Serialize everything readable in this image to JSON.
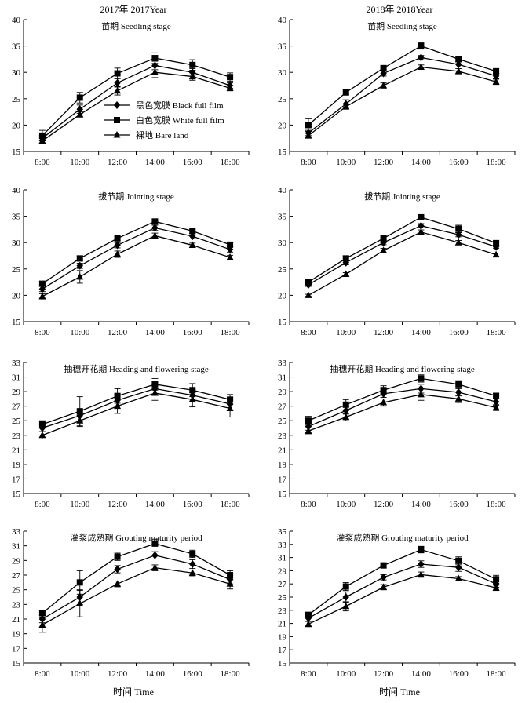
{
  "column_headers": [
    "2017年 2017Year",
    "2018年 2018Year"
  ],
  "legend": [
    {
      "label": "黑色宽膜 Black full film",
      "marker": "diamond"
    },
    {
      "label": "白色宽膜 White full film",
      "marker": "square"
    },
    {
      "label": "裸地 Bare land",
      "marker": "triangle"
    }
  ],
  "xlabel": "时间 Time",
  "chart_data": [
    {
      "type": "line",
      "title": "苗期 Seedling stage",
      "year": "2017",
      "categories": [
        "8:00",
        "10:00",
        "12:00",
        "14:00",
        "16:00",
        "18:00"
      ],
      "ylim": [
        15,
        40
      ],
      "yticks": [
        15,
        20,
        25,
        30,
        35,
        40
      ],
      "series": [
        {
          "name": "黑色宽膜 Black full film",
          "marker": "diamond",
          "values": [
            17.5,
            23.0,
            28.0,
            31.3,
            30.0,
            27.5
          ],
          "err": [
            0.5,
            0.8,
            0.8,
            0.8,
            0.7,
            0.5
          ]
        },
        {
          "name": "白色宽膜 White full film",
          "marker": "square",
          "values": [
            18.0,
            25.2,
            29.8,
            32.7,
            31.4,
            29.1
          ],
          "err": [
            1.0,
            1.0,
            1.0,
            1.0,
            1.0,
            0.8
          ]
        },
        {
          "name": "裸地 Bare land",
          "marker": "triangle",
          "values": [
            17.0,
            22.0,
            26.5,
            30.0,
            29.2,
            27.0
          ],
          "err": [
            0.5,
            0.5,
            0.8,
            1.0,
            0.7,
            0.5
          ]
        }
      ]
    },
    {
      "type": "line",
      "title": "苗期 Seedling stage",
      "year": "2018",
      "categories": [
        "8:00",
        "10:00",
        "12:00",
        "14:00",
        "16:00",
        "18:00"
      ],
      "ylim": [
        15,
        40
      ],
      "yticks": [
        15,
        20,
        25,
        30,
        35,
        40
      ],
      "series": [
        {
          "name": "黑色宽膜 Black full film",
          "marker": "diamond",
          "values": [
            18.5,
            24.0,
            29.8,
            32.8,
            31.5,
            29.3
          ],
          "err": [
            0.5,
            0.8,
            0.5,
            0.4,
            0.5,
            0.5
          ]
        },
        {
          "name": "白色宽膜 White full film",
          "marker": "square",
          "values": [
            20.0,
            26.2,
            30.8,
            35.0,
            32.5,
            30.2
          ],
          "err": [
            1.2,
            0.5,
            0.3,
            0.6,
            0.5,
            0.5
          ]
        },
        {
          "name": "裸地 Bare land",
          "marker": "triangle",
          "values": [
            18.0,
            23.5,
            27.5,
            31.0,
            30.2,
            28.2
          ],
          "err": [
            0.5,
            0.5,
            0.5,
            0.4,
            0.5,
            0.5
          ]
        }
      ]
    },
    {
      "type": "line",
      "title": "拔节期 Jointing stage",
      "year": "2017",
      "categories": [
        "8:00",
        "10:00",
        "12:00",
        "14:00",
        "16:00",
        "18:00"
      ],
      "ylim": [
        15,
        40
      ],
      "yticks": [
        15,
        20,
        25,
        30,
        35,
        40
      ],
      "series": [
        {
          "name": "黑色宽膜 Black full film",
          "marker": "diamond",
          "values": [
            21.2,
            25.6,
            29.5,
            32.8,
            31.2,
            28.7
          ],
          "err": [
            0.5,
            0.5,
            0.5,
            0.5,
            0.5,
            0.5
          ]
        },
        {
          "name": "白色宽膜 White full film",
          "marker": "square",
          "values": [
            22.2,
            27.0,
            30.8,
            34.0,
            32.2,
            29.6
          ],
          "err": [
            0.3,
            0.5,
            0.4,
            0.5,
            0.5,
            0.4
          ]
        },
        {
          "name": "裸地 Bare land",
          "marker": "triangle",
          "values": [
            19.8,
            23.5,
            27.8,
            31.3,
            29.5,
            27.2
          ],
          "err": [
            0.5,
            1.2,
            0.6,
            0.5,
            0.4,
            0.4
          ]
        }
      ]
    },
    {
      "type": "line",
      "title": "拔节期 Jointing stage",
      "year": "2018",
      "categories": [
        "8:00",
        "10:00",
        "12:00",
        "14:00",
        "16:00",
        "18:00"
      ],
      "ylim": [
        15,
        40
      ],
      "yticks": [
        15,
        20,
        25,
        30,
        35,
        40
      ],
      "series": [
        {
          "name": "黑色宽膜 Black full film",
          "marker": "diamond",
          "values": [
            22.0,
            26.2,
            30.0,
            33.2,
            31.5,
            29.2
          ],
          "err": [
            0.3,
            0.4,
            0.4,
            0.4,
            0.4,
            0.3
          ]
        },
        {
          "name": "白色宽膜 White full film",
          "marker": "square",
          "values": [
            22.5,
            27.0,
            30.8,
            34.8,
            32.6,
            29.9
          ],
          "err": [
            0.3,
            0.5,
            0.5,
            0.4,
            0.7,
            0.4
          ]
        },
        {
          "name": "裸地 Bare land",
          "marker": "triangle",
          "values": [
            20.0,
            24.0,
            28.5,
            32.0,
            30.0,
            27.7
          ],
          "err": [
            0.2,
            0.3,
            0.4,
            0.4,
            0.4,
            0.3
          ]
        }
      ]
    },
    {
      "type": "line",
      "title": "抽穗开花期 Heading and flowering stage",
      "year": "2017",
      "categories": [
        "8:00",
        "10:00",
        "12:00",
        "14:00",
        "16:00",
        "18:00"
      ],
      "ylim": [
        15,
        33
      ],
      "yticks": [
        15,
        17,
        19,
        21,
        23,
        25,
        27,
        29,
        31,
        33
      ],
      "series": [
        {
          "name": "黑色宽膜 Black full film",
          "marker": "diamond",
          "values": [
            24.0,
            25.7,
            27.8,
            29.4,
            28.5,
            27.3
          ],
          "err": [
            0.5,
            0.8,
            0.8,
            0.8,
            0.8,
            0.8
          ]
        },
        {
          "name": "白色宽膜 White full film",
          "marker": "square",
          "values": [
            24.5,
            26.3,
            28.4,
            30.0,
            29.2,
            27.9
          ],
          "err": [
            0.5,
            2.0,
            1.0,
            0.8,
            0.9,
            0.7
          ]
        },
        {
          "name": "裸地 Bare land",
          "marker": "triangle",
          "values": [
            23.0,
            25.0,
            27.0,
            28.8,
            27.9,
            26.7
          ],
          "err": [
            0.5,
            0.8,
            1.0,
            1.0,
            1.0,
            1.2
          ]
        }
      ]
    },
    {
      "type": "line",
      "title": "抽穗开花期 Heading and flowering stage",
      "year": "2018",
      "categories": [
        "8:00",
        "10:00",
        "12:00",
        "14:00",
        "16:00",
        "18:00"
      ],
      "ylim": [
        15,
        33
      ],
      "yticks": [
        15,
        17,
        19,
        21,
        23,
        25,
        27,
        29,
        31,
        33
      ],
      "series": [
        {
          "name": "黑色宽膜 Black full film",
          "marker": "diamond",
          "values": [
            24.2,
            26.4,
            28.7,
            29.4,
            28.9,
            27.6
          ],
          "err": [
            0.5,
            0.5,
            0.5,
            0.6,
            0.5,
            0.5
          ]
        },
        {
          "name": "白色宽膜 White full film",
          "marker": "square",
          "values": [
            25.0,
            27.2,
            29.2,
            30.8,
            30.0,
            28.4
          ],
          "err": [
            0.6,
            0.7,
            0.6,
            0.5,
            0.5,
            0.4
          ]
        },
        {
          "name": "裸地 Bare land",
          "marker": "triangle",
          "values": [
            23.6,
            25.5,
            27.5,
            28.6,
            28.0,
            26.8
          ],
          "err": [
            0.4,
            0.5,
            0.5,
            0.8,
            0.5,
            0.4
          ]
        }
      ]
    },
    {
      "type": "line",
      "title": "灌浆成熟期 Grouting maturity period",
      "year": "2017",
      "categories": [
        "8:00",
        "10:00",
        "12:00",
        "14:00",
        "16:00",
        "18:00"
      ],
      "ylim": [
        15,
        33
      ],
      "yticks": [
        15,
        17,
        19,
        21,
        23,
        25,
        27,
        29,
        31,
        33
      ],
      "series": [
        {
          "name": "黑色宽膜 Black full film",
          "marker": "diamond",
          "values": [
            21.0,
            24.0,
            27.8,
            29.7,
            28.5,
            26.4
          ],
          "err": [
            0.5,
            1.0,
            0.5,
            0.5,
            0.6,
            0.6
          ]
        },
        {
          "name": "白色宽膜 White full film",
          "marker": "square",
          "values": [
            21.8,
            26.0,
            29.5,
            31.3,
            29.9,
            27.0
          ],
          "err": [
            0.3,
            1.6,
            0.5,
            0.6,
            0.5,
            0.6
          ]
        },
        {
          "name": "裸地 Bare land",
          "marker": "triangle",
          "values": [
            20.2,
            23.1,
            25.8,
            28.0,
            27.3,
            25.8
          ],
          "err": [
            1.0,
            1.8,
            0.4,
            0.4,
            0.4,
            0.7
          ]
        }
      ]
    },
    {
      "type": "line",
      "title": "灌浆成熟期 Grouting maturity period",
      "year": "2018",
      "categories": [
        "8:00",
        "10:00",
        "12:00",
        "14:00",
        "16:00",
        "18:00"
      ],
      "ylim": [
        15,
        35
      ],
      "yticks": [
        15,
        17,
        19,
        21,
        23,
        25,
        27,
        29,
        31,
        33,
        35
      ],
      "series": [
        {
          "name": "黑色宽膜 Black full film",
          "marker": "diamond",
          "values": [
            21.8,
            25.0,
            28.0,
            30.0,
            29.5,
            27.0
          ],
          "err": [
            0.5,
            0.8,
            0.4,
            0.5,
            0.6,
            0.5
          ]
        },
        {
          "name": "白色宽膜 White full film",
          "marker": "square",
          "values": [
            22.3,
            26.6,
            29.8,
            32.2,
            30.5,
            27.7
          ],
          "err": [
            0.4,
            0.6,
            0.4,
            0.5,
            0.6,
            0.6
          ]
        },
        {
          "name": "裸地 Bare land",
          "marker": "triangle",
          "values": [
            20.9,
            23.6,
            26.5,
            28.4,
            27.8,
            26.4
          ],
          "err": [
            0.4,
            0.7,
            0.4,
            0.4,
            0.3,
            0.4
          ]
        }
      ]
    }
  ]
}
